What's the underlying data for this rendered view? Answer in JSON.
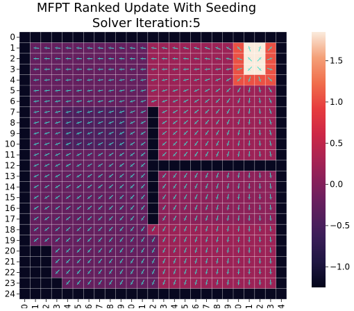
{
  "chart_data": {
    "type": "heatmap",
    "title_lines": [
      "MFPT Ranked Update With Seeding",
      "Solver Iteration:5"
    ],
    "x_categories": [
      "0",
      "1",
      "2",
      "3",
      "4",
      "5",
      "6",
      "7",
      "8",
      "9",
      "10",
      "11",
      "12",
      "13",
      "14",
      "15",
      "16",
      "17",
      "18",
      "19",
      "20",
      "21",
      "22",
      "23",
      "24"
    ],
    "y_categories": [
      "0",
      "1",
      "2",
      "3",
      "4",
      "5",
      "6",
      "7",
      "8",
      "9",
      "10",
      "11",
      "12",
      "13",
      "14",
      "15",
      "16",
      "17",
      "18",
      "19",
      "20",
      "21",
      "22",
      "23",
      "24"
    ],
    "colorbar": {
      "min": -1.25,
      "max": 1.85,
      "ticks": [
        -1.0,
        -0.5,
        0.0,
        0.5,
        1.0,
        1.5
      ],
      "tick_labels": [
        "−1.0",
        "−0.5",
        "0.0",
        "0.5",
        "1.0",
        "1.5"
      ]
    },
    "cell_values": {
      "obstacle": -1.2,
      "left_region": -0.25,
      "left_center": -0.45,
      "right_region": 0.2,
      "right_lower": 0.08,
      "target_zone": 1.05,
      "target_core": 1.85
    },
    "gridlines": true,
    "vector_field": true,
    "colors": {
      "vector_arrows": "#40e0d0",
      "gridline": "#ffffff"
    }
  }
}
